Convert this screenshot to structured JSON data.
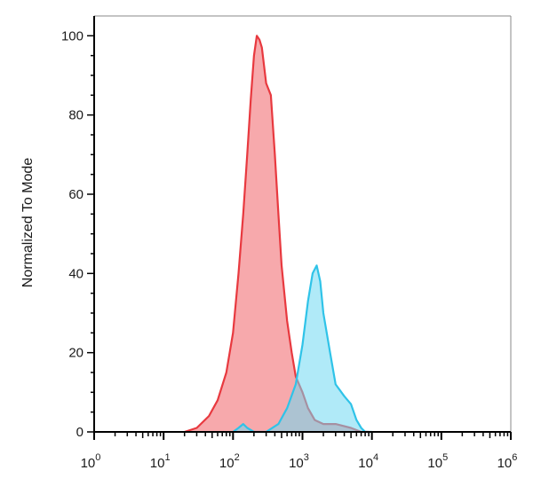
{
  "chart_data": {
    "type": "area",
    "title": "",
    "xlabel": "",
    "ylabel": "Normalized To Mode",
    "x_scale": "log",
    "xlim": [
      1,
      1000000
    ],
    "ylim": [
      0,
      105
    ],
    "grid": false,
    "legend": "none",
    "y_ticks": [
      0,
      20,
      40,
      60,
      80,
      100
    ],
    "x_ticks": [
      {
        "base": "10",
        "exp": "0"
      },
      {
        "base": "10",
        "exp": "1"
      },
      {
        "base": "10",
        "exp": "2"
      },
      {
        "base": "10",
        "exp": "3"
      },
      {
        "base": "10",
        "exp": "4"
      },
      {
        "base": "10",
        "exp": "5"
      },
      {
        "base": "10",
        "exp": "6"
      }
    ],
    "series": [
      {
        "color": "#e8393f",
        "fill": "#f37b80",
        "x": [
          20,
          30,
          45,
          60,
          80,
          100,
          120,
          140,
          160,
          180,
          200,
          220,
          240,
          260,
          300,
          350,
          400,
          450,
          500,
          600,
          700,
          800,
          1000,
          1200,
          1500,
          2000,
          3000,
          5000,
          7000,
          9000
        ],
        "y": [
          0,
          1,
          4,
          8,
          15,
          25,
          40,
          55,
          70,
          84,
          95,
          100,
          99,
          97,
          88,
          85,
          70,
          55,
          42,
          28,
          20,
          14,
          10,
          6,
          3,
          2,
          2,
          1,
          0,
          0
        ]
      },
      {
        "color": "#2fc3e8",
        "fill": "#6fd9f2",
        "x": [
          100,
          120,
          140,
          160,
          200,
          300,
          450,
          600,
          800,
          1000,
          1200,
          1400,
          1600,
          1800,
          2000,
          2500,
          3000,
          4000,
          5000,
          6000,
          7000,
          8000,
          10000
        ],
        "y": [
          0,
          1,
          2,
          1,
          0,
          0,
          2,
          6,
          12,
          22,
          33,
          40,
          42,
          38,
          30,
          20,
          12,
          9,
          7,
          3,
          1,
          0,
          0
        ]
      }
    ]
  }
}
